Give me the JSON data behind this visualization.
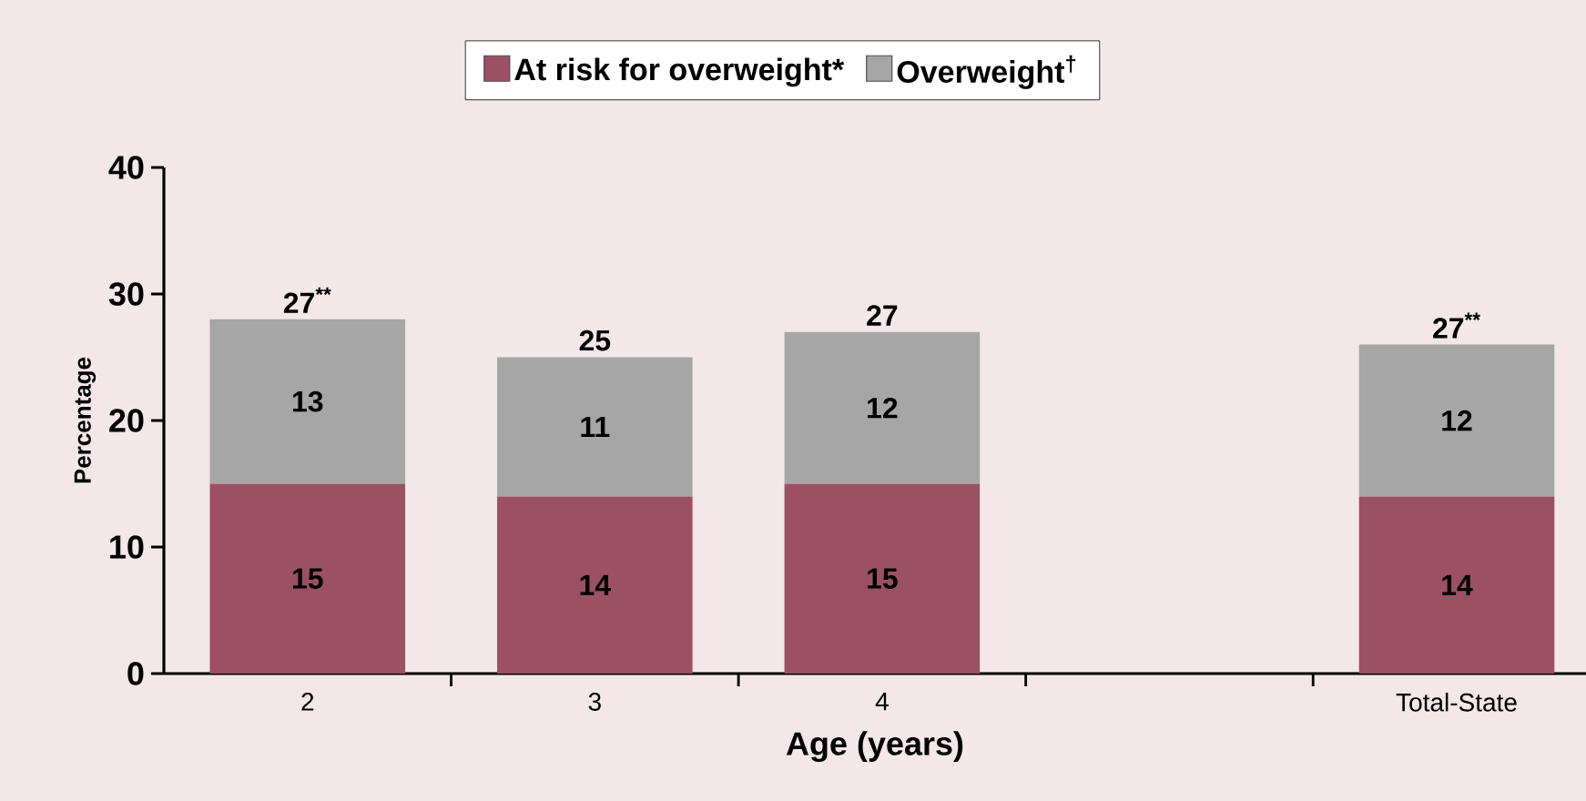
{
  "chart_data": {
    "type": "bar",
    "stacked": true,
    "xlabel": "Age (years)",
    "ylabel": "Percentage",
    "categories": [
      "2",
      "3",
      "4",
      null,
      "Total-State"
    ],
    "series": [
      {
        "name": "At risk for overweight*",
        "color": "#9b5163",
        "values": [
          15,
          14,
          15,
          null,
          14
        ]
      },
      {
        "name": "Overweight$^{†}$",
        "color": "#a6a6a6",
        "values": [
          13,
          11,
          12,
          null,
          12
        ]
      }
    ],
    "ylim": [
      0,
      40
    ],
    "yticks": [
      0,
      10,
      20,
      30,
      40
    ],
    "data_labels": true,
    "totals": [
      "27$^{**}$",
      "25",
      "27",
      null,
      "27$^{**}$"
    ],
    "legend": "top"
  }
}
